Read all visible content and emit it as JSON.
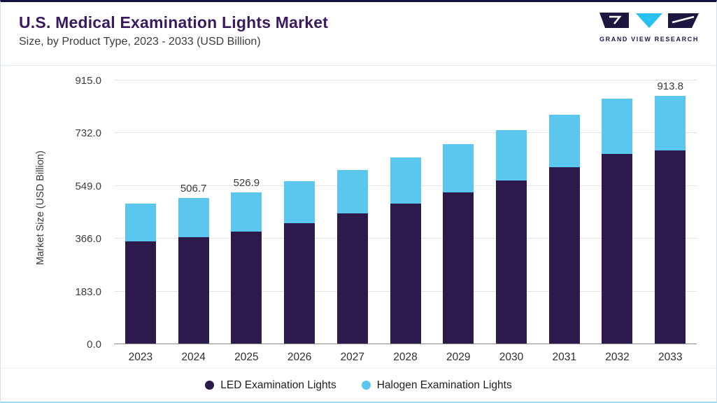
{
  "header": {
    "title": "U.S. Medical Examination Lights Market",
    "subtitle": "Size, by Product Type, 2023 - 2033 (USD Billion)",
    "logo_text": "GRAND VIEW RESEARCH"
  },
  "chart_data": {
    "type": "bar",
    "stacked": true,
    "title": "U.S. Medical Examination Lights Market",
    "subtitle": "Size, by Product Type, 2023 - 2033 (USD Billion)",
    "ylabel": "Market Size (USD Billion)",
    "ylim": [
      0,
      915
    ],
    "ytick_labels": [
      "0.0",
      "183.0",
      "366.0",
      "549.0",
      "732.0",
      "915.0"
    ],
    "categories": [
      "2023",
      "2024",
      "2025",
      "2026",
      "2027",
      "2028",
      "2029",
      "2030",
      "2031",
      "2032",
      "2033"
    ],
    "series": [
      {
        "name": "LED Examination Lights",
        "key": "led",
        "color": "#2b1a4b",
        "values": [
          355.7,
          372.4,
          389.9,
          420.5,
          453.5,
          488.9,
          527.2,
          568.5,
          612.9,
          660.8,
          712.8
        ]
      },
      {
        "name": "Halogen Examination Lights",
        "key": "halogen",
        "color": "#5bc7ef",
        "values": [
          131.5,
          134.3,
          137.0,
          143.9,
          151.1,
          158.7,
          166.5,
          174.6,
          183.1,
          191.9,
          201.0
        ]
      }
    ],
    "totals": [
      487.2,
      506.7,
      526.9,
      564.4,
      604.6,
      647.6,
      693.7,
      743.1,
      796.0,
      852.7,
      913.8
    ],
    "bar_value_labels": [
      "",
      "506.7",
      "526.9",
      "",
      "",
      "",
      "",
      "",
      "",
      "",
      "913.8"
    ],
    "grid": true,
    "legend_position": "bottom"
  },
  "colors": {
    "title": "#3a1a5e",
    "led": "#2b1a4b",
    "halogen": "#5bc7ef",
    "top_border": "#13113f",
    "bottom_border": "#9fd8f0"
  }
}
